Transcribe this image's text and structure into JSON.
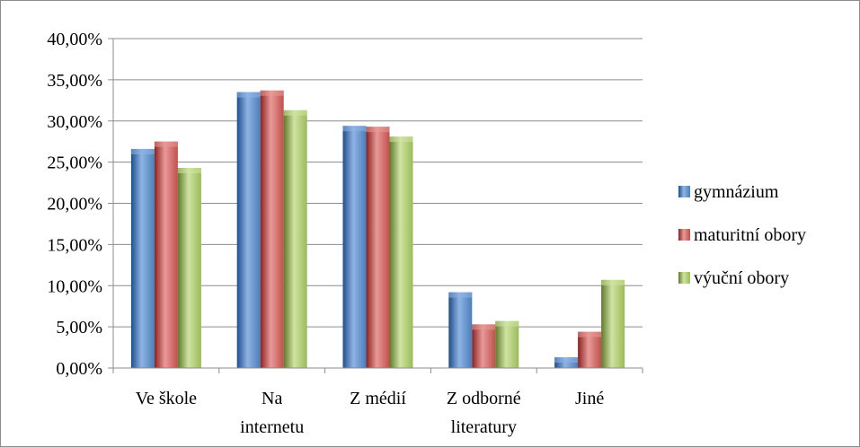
{
  "chart_data": {
    "type": "bar",
    "categories": [
      [
        "Ve škole"
      ],
      [
        "Na",
        "internetu"
      ],
      [
        "Z médií"
      ],
      [
        "Z odborné",
        "literatury"
      ],
      [
        "Jiné"
      ]
    ],
    "series": [
      {
        "name": "gymnázium",
        "values": [
          26.6,
          33.5,
          29.4,
          9.2,
          1.3
        ],
        "color": "#4a7ebb",
        "dark": "#1f4e8c",
        "light": "#8fb4e3"
      },
      {
        "name": "maturitní obory",
        "values": [
          27.5,
          33.7,
          29.3,
          5.3,
          4.4
        ],
        "color": "#c0504d",
        "dark": "#8b2220",
        "light": "#e89a98"
      },
      {
        "name": "výuční obory",
        "values": [
          24.3,
          31.3,
          28.1,
          5.7,
          10.7
        ],
        "color": "#9bbb59",
        "dark": "#5f7a2a",
        "light": "#cfe3a3"
      }
    ],
    "y_ticks": [
      "0,00%",
      "5,00%",
      "10,00%",
      "15,00%",
      "20,00%",
      "25,00%",
      "30,00%",
      "35,00%",
      "40,00%"
    ],
    "ylim": [
      0,
      40
    ],
    "grid": true,
    "legend": "right",
    "title": "",
    "xlabel": "",
    "ylabel": ""
  }
}
